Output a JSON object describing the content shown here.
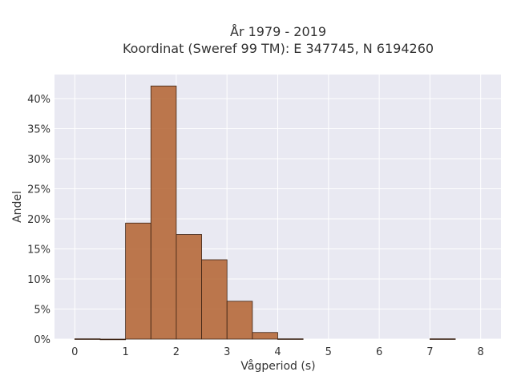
{
  "chart_data": {
    "type": "bar",
    "title_lines": [
      "År 1979 - 2019",
      "Koordinat (Sweref 99 TM): E 347745, N 6194260"
    ],
    "xlabel": "Vågperiod (s)",
    "ylabel": "Andel",
    "x_ticks": [
      "0",
      "1",
      "2",
      "3",
      "4",
      "5",
      "6",
      "7",
      "8"
    ],
    "y_ticks": [
      "0%",
      "5%",
      "10%",
      "15%",
      "20%",
      "25%",
      "30%",
      "35%",
      "40%"
    ],
    "xlim": [
      -0.4,
      8.4
    ],
    "ylim": [
      0,
      0.44
    ],
    "bin_width": 0.5,
    "bins": [
      {
        "start": 0.0,
        "value": 0.0005
      },
      {
        "start": 0.5,
        "value": 0.0
      },
      {
        "start": 1.0,
        "value": 0.193
      },
      {
        "start": 1.5,
        "value": 0.421
      },
      {
        "start": 2.0,
        "value": 0.174
      },
      {
        "start": 2.5,
        "value": 0.132
      },
      {
        "start": 3.0,
        "value": 0.063
      },
      {
        "start": 3.5,
        "value": 0.011
      },
      {
        "start": 4.0,
        "value": 0.0005
      },
      {
        "start": 7.0,
        "value": 0.0005
      }
    ],
    "colors": {
      "bar_fill": "#b3612f",
      "bar_edge": "#3d2415",
      "plot_background": "#e9e9f2",
      "grid": "#ffffff"
    },
    "grid": true,
    "legend": "none"
  }
}
